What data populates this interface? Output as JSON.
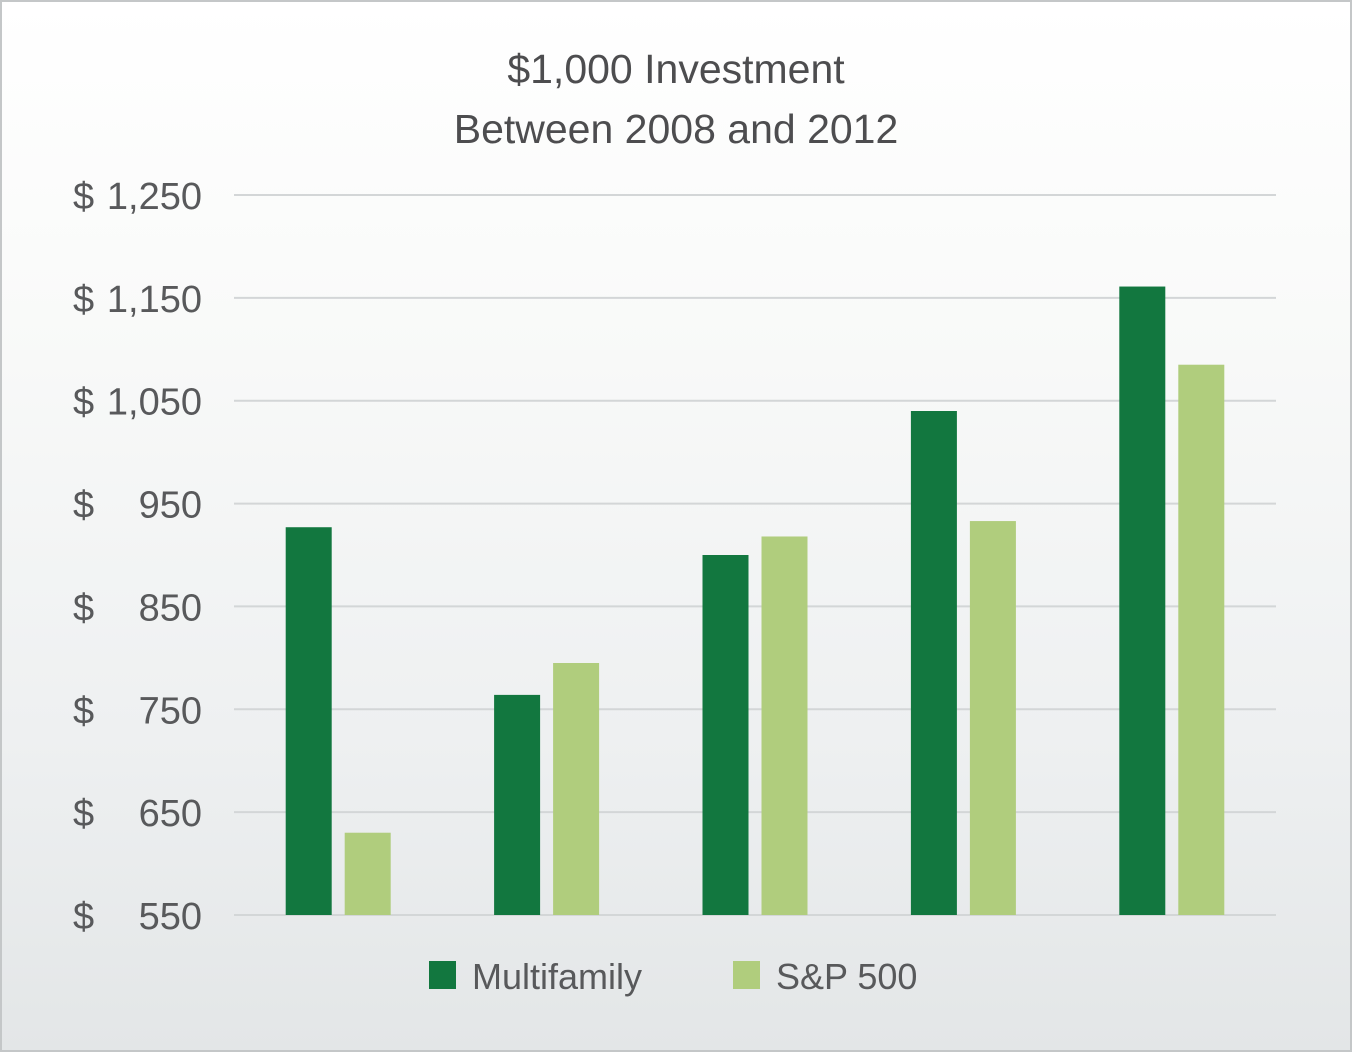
{
  "chart_data": {
    "type": "bar",
    "title": [
      "$1,000 Investment",
      "Between 2008 and 2012"
    ],
    "xlabel": "",
    "ylabel": "",
    "ylim": [
      550,
      1250
    ],
    "yticks": [
      {
        "currency": "$",
        "number": "1,250",
        "value": 1250
      },
      {
        "currency": "$",
        "number": "1,150",
        "value": 1150
      },
      {
        "currency": "$",
        "number": "1,050",
        "value": 1050
      },
      {
        "currency": "$",
        "number": "950",
        "value": 950
      },
      {
        "currency": "$",
        "number": "850",
        "value": 850
      },
      {
        "currency": "$",
        "number": "750",
        "value": 750
      },
      {
        "currency": "$",
        "number": "650",
        "value": 650
      },
      {
        "currency": "$",
        "number": "550",
        "value": 550
      }
    ],
    "categories": [
      "",
      "",
      "",
      "",
      ""
    ],
    "series": [
      {
        "name": "Multifamily",
        "color": "#12773f",
        "values": [
          927,
          764,
          900,
          1040,
          1161
        ]
      },
      {
        "name": "S&P 500",
        "color": "#b0cd7d",
        "values": [
          630,
          795,
          918,
          933,
          1085
        ]
      }
    ],
    "grid": true,
    "legend": "bottom-center"
  }
}
